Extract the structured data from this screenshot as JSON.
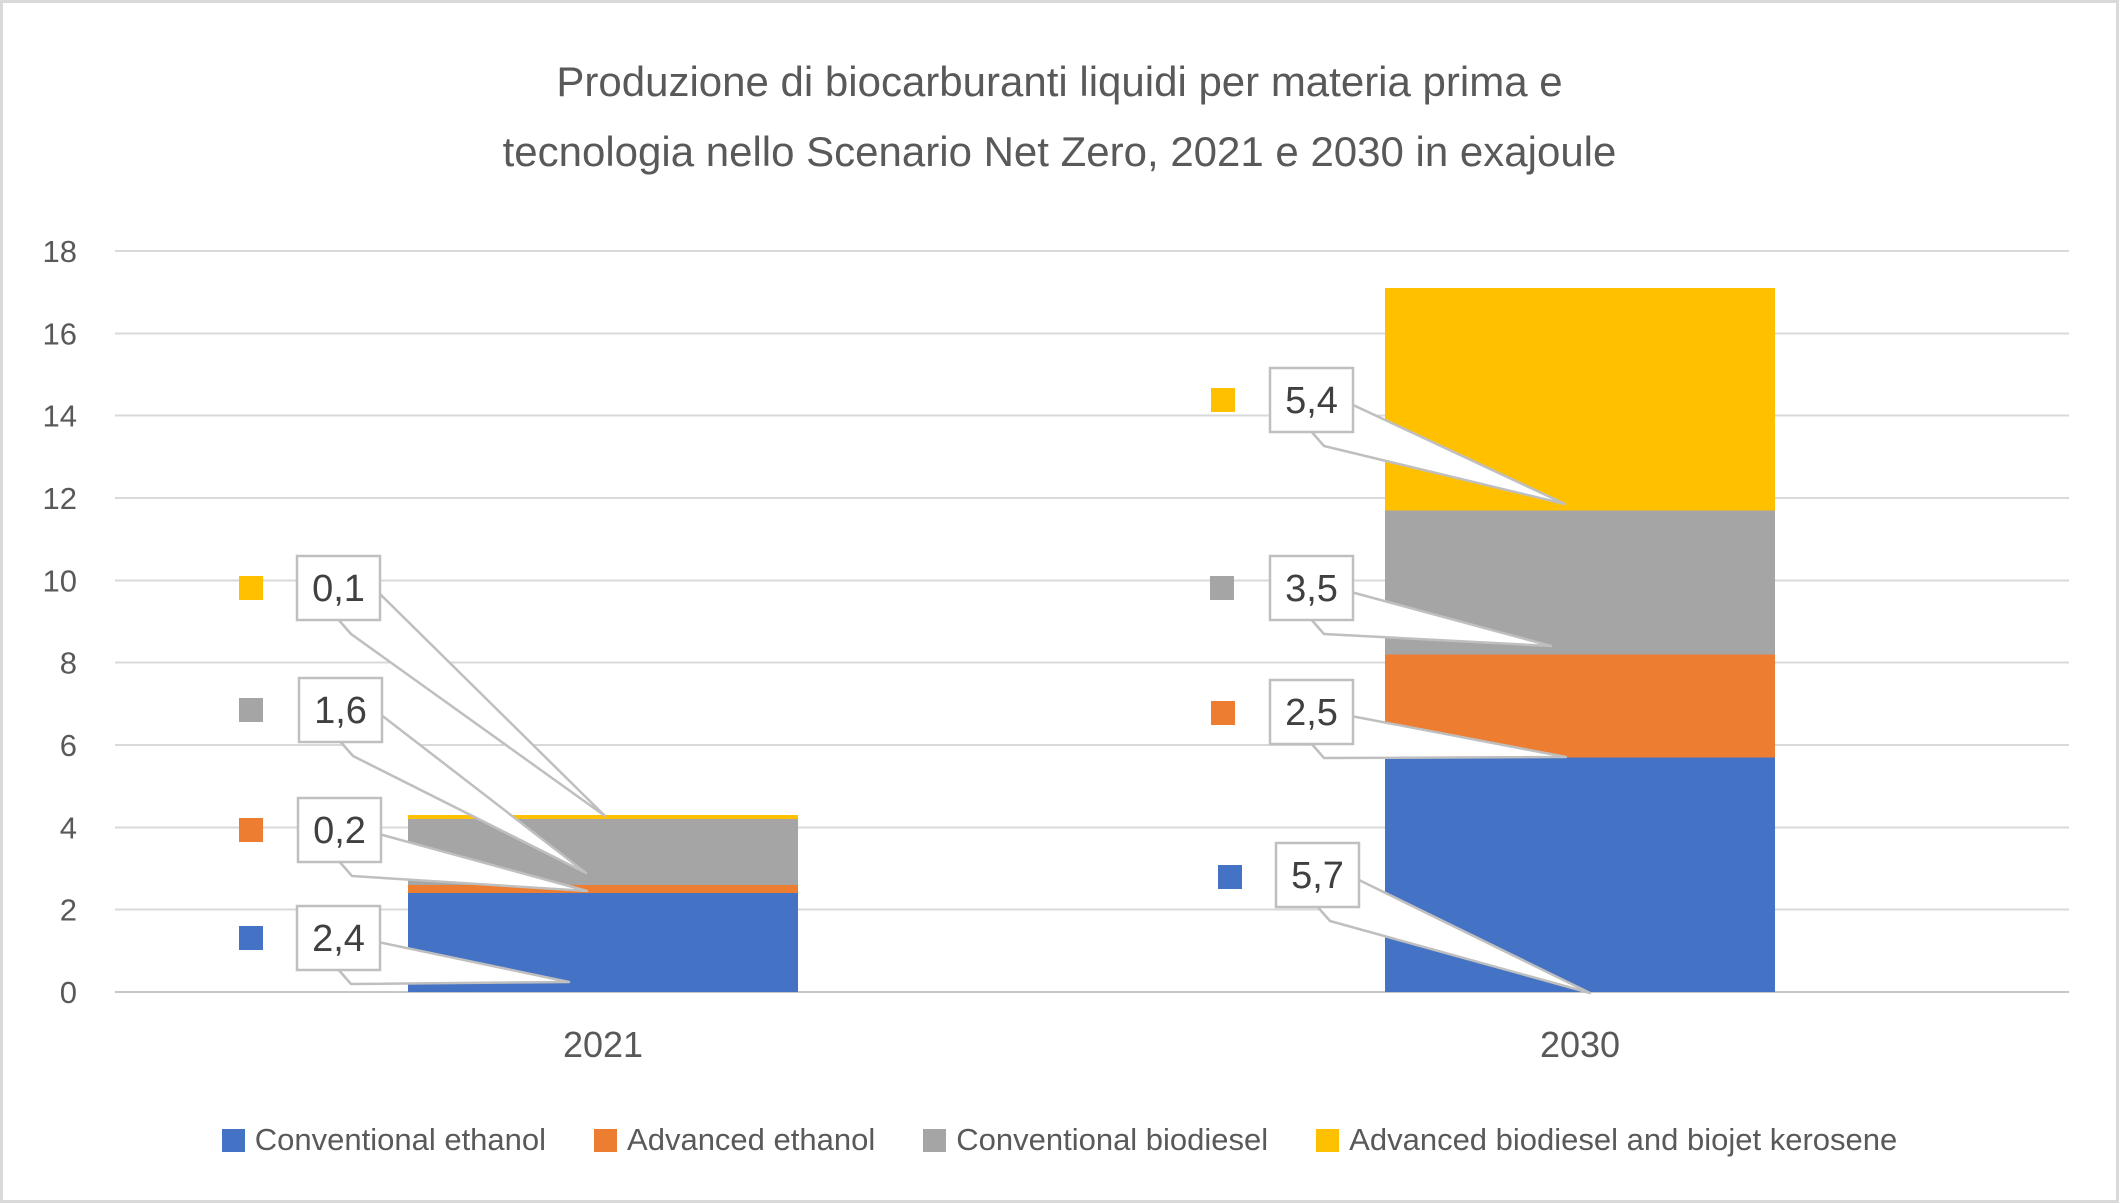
{
  "header": {
    "title_line1": "Produzione di biocarburanti liquidi per materia prima e",
    "title_line2": "tecnologia nello Scenario Net Zero, 2021 e 2030 in exajoule"
  },
  "chart_data": {
    "type": "bar",
    "variant": "stacked-column",
    "title": "Produzione di biocarburanti liquidi per materia prima e tecnologia nello Scenario Net Zero, 2021 e 2030 in exajoule",
    "unit": "exajoule",
    "categories": [
      "2021",
      "2030"
    ],
    "series": [
      {
        "name": "Conventional ethanol",
        "color": "#4472C4",
        "values": [
          2.4,
          5.7
        ],
        "labels": [
          "2,4",
          "5,7"
        ]
      },
      {
        "name": "Advanced ethanol",
        "color": "#ED7D31",
        "values": [
          0.2,
          2.5
        ],
        "labels": [
          "0,2",
          "2,5"
        ]
      },
      {
        "name": "Conventional biodiesel",
        "color": "#A5A5A5",
        "values": [
          1.6,
          3.5
        ],
        "labels": [
          "1,6",
          "3,5"
        ]
      },
      {
        "name": "Advanced biodiesel and biojet kerosene",
        "color": "#FFC000",
        "values": [
          0.1,
          5.4
        ],
        "labels": [
          "0,1",
          "5,4"
        ]
      }
    ],
    "y_axis": {
      "min": 0,
      "max": 18,
      "step": 2,
      "ticks": [
        0,
        2,
        4,
        6,
        8,
        10,
        12,
        14,
        16,
        18
      ]
    },
    "grid": true,
    "legend_position": "bottom",
    "totals": [
      4.3,
      17.1
    ],
    "decimal_separator": ","
  },
  "colors": {
    "gridline": "#D9D9D9",
    "baseline": "#C6C6C6",
    "callout_border": "#BFBFBF",
    "callout_fill": "#FFFFFF",
    "title_text": "#595959",
    "axis_text": "#595959",
    "label_text": "#404040"
  }
}
